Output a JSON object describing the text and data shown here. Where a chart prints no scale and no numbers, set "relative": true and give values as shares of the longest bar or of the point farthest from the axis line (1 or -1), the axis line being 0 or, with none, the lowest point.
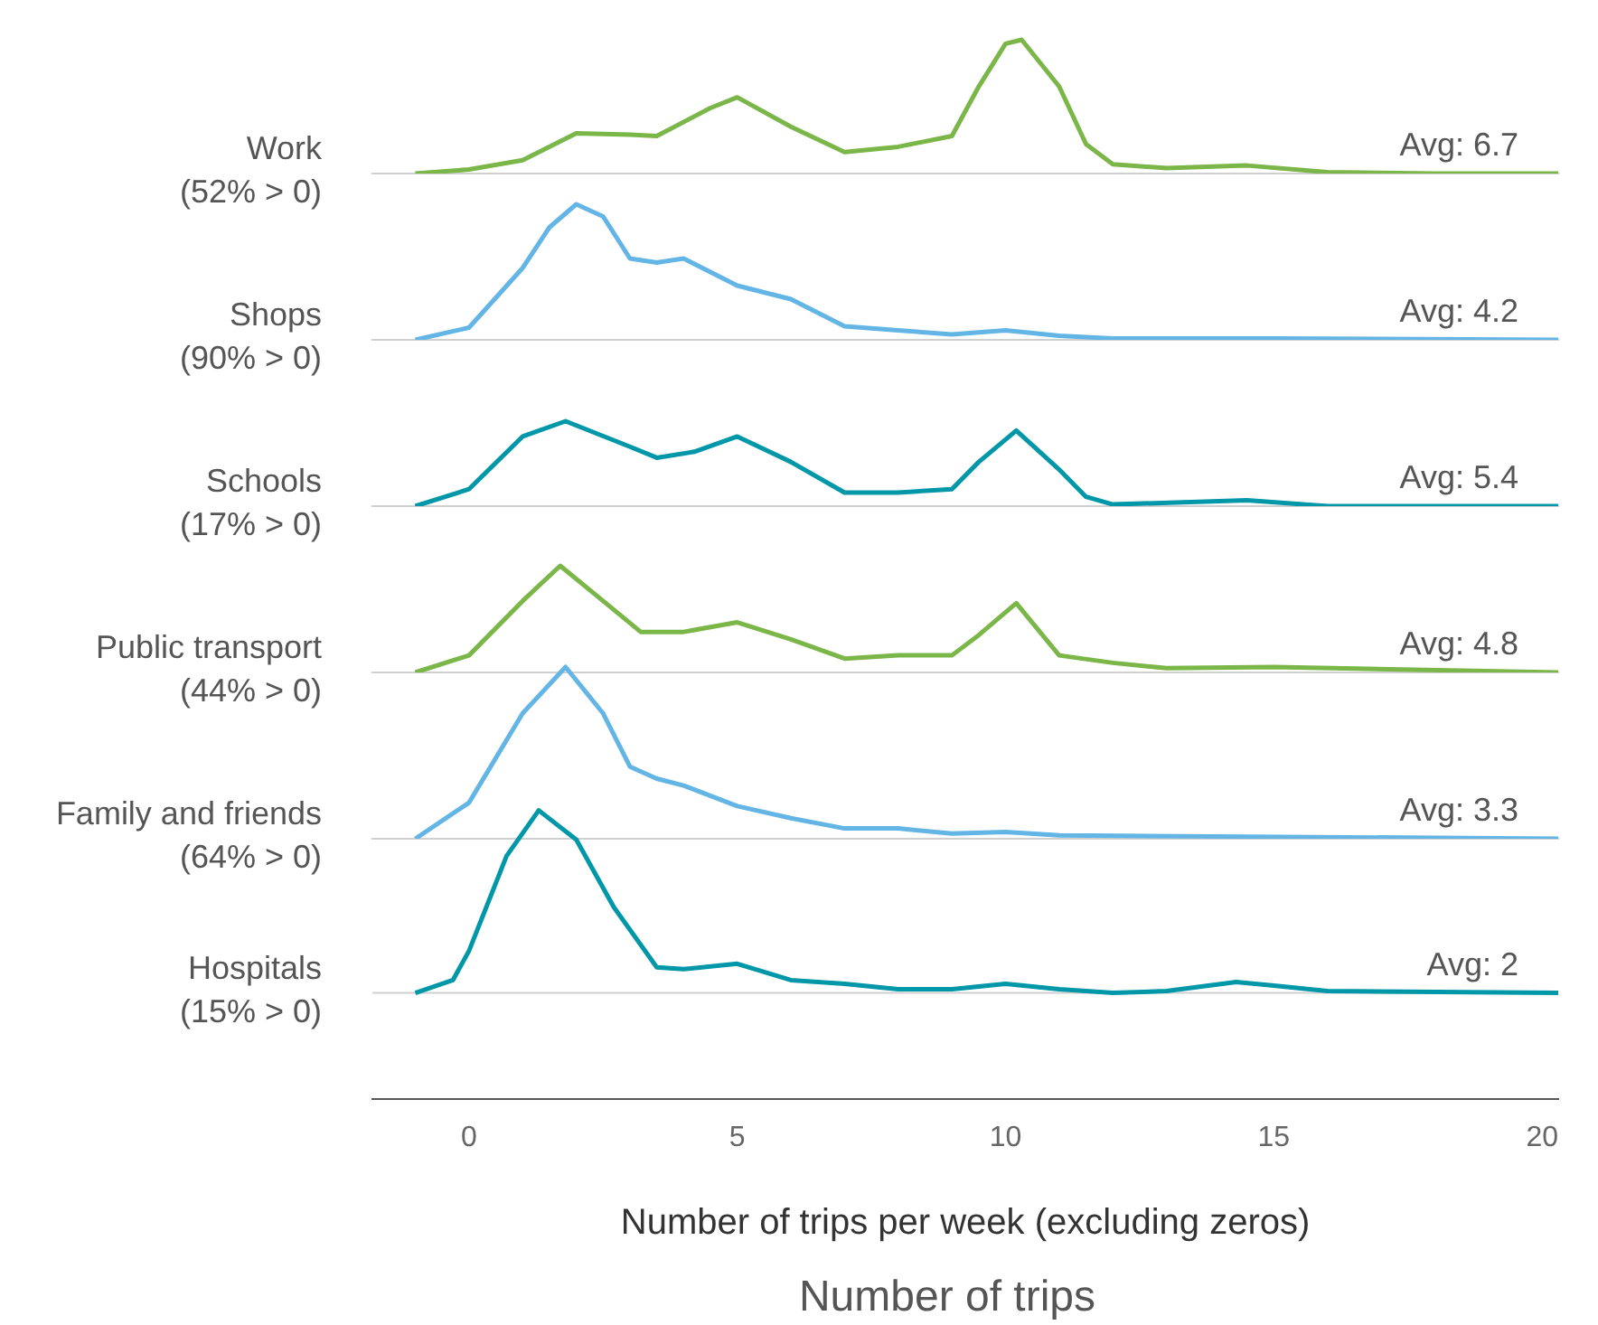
{
  "chart_data": [
    {
      "type": "line",
      "relative": true,
      "marker": "none",
      "line_style": "solid",
      "ylabel": "Work (52% > 0)",
      "xlim": [
        -1.8,
        20.3
      ],
      "tick_labels": false,
      "annotations": [
        "Avg: 6.7"
      ],
      "x": [
        -1,
        0,
        1,
        2,
        3,
        3.5,
        4.5,
        5,
        6,
        7,
        8,
        9,
        9.5,
        10,
        10.3,
        11,
        11.5,
        12,
        13,
        14.5,
        16,
        18,
        20.3
      ],
      "series": [
        {
          "color": "#7ab648",
          "values": [
            0,
            0.03,
            0.1,
            0.3,
            0.29,
            0.28,
            0.49,
            0.57,
            0.35,
            0.16,
            0.2,
            0.28,
            0.65,
            0.97,
            1,
            0.65,
            0.22,
            0.07,
            0.04,
            0.06,
            0.01,
            0,
            0
          ]
        }
      ]
    },
    {
      "type": "line",
      "relative": true,
      "marker": "none",
      "line_style": "solid",
      "ylabel": "Shops (90% > 0)",
      "xlim": [
        -1.8,
        20.3
      ],
      "tick_labels": false,
      "annotations": [
        "Avg: 4.2"
      ],
      "x": [
        -1,
        0,
        1,
        1.5,
        2,
        2.5,
        3,
        3.5,
        4,
        5,
        6,
        7,
        8,
        9,
        10,
        11,
        12,
        15,
        20.3
      ],
      "series": [
        {
          "color": "#62b5e5",
          "values": [
            0,
            0.09,
            0.53,
            0.83,
            1,
            0.91,
            0.6,
            0.57,
            0.6,
            0.4,
            0.3,
            0.1,
            0.07,
            0.04,
            0.07,
            0.03,
            0.01,
            0.01,
            0
          ]
        }
      ]
    },
    {
      "type": "line",
      "relative": true,
      "marker": "none",
      "line_style": "solid",
      "ylabel": "Schools (17% > 0)",
      "xlim": [
        -1.8,
        20.3
      ],
      "tick_labels": false,
      "annotations": [
        "Avg: 5.4"
      ],
      "x": [
        -1,
        0,
        1,
        1.8,
        3,
        3.5,
        4.2,
        5,
        6,
        7,
        8,
        9,
        9.5,
        10.2,
        11,
        11.5,
        12,
        14.5,
        16,
        20.3
      ],
      "series": [
        {
          "color": "#0097a9",
          "values": [
            0,
            0.2,
            0.82,
            1,
            0.7,
            0.57,
            0.64,
            0.82,
            0.52,
            0.16,
            0.16,
            0.2,
            0.52,
            0.89,
            0.43,
            0.11,
            0.02,
            0.07,
            0,
            0
          ]
        }
      ]
    },
    {
      "type": "line",
      "relative": true,
      "marker": "none",
      "line_style": "solid",
      "ylabel": "Public transport (44% > 0)",
      "xlim": [
        -1.8,
        20.3
      ],
      "tick_labels": false,
      "annotations": [
        "Avg: 4.8"
      ],
      "x": [
        -1,
        0,
        1,
        1.7,
        2.5,
        3.2,
        4,
        5,
        6,
        7,
        8,
        9,
        9.5,
        10.2,
        11,
        12,
        13,
        15,
        20.3
      ],
      "series": [
        {
          "color": "#7ab648",
          "values": [
            0,
            0.16,
            0.67,
            1,
            0.67,
            0.38,
            0.38,
            0.47,
            0.31,
            0.13,
            0.16,
            0.16,
            0.35,
            0.65,
            0.16,
            0.09,
            0.04,
            0.05,
            0
          ]
        }
      ]
    },
    {
      "type": "line",
      "relative": true,
      "marker": "none",
      "line_style": "solid",
      "ylabel": "Family and friends (64% > 0)",
      "xlim": [
        -1.8,
        20.3
      ],
      "tick_labels": false,
      "annotations": [
        "Avg: 3.3"
      ],
      "x": [
        -1,
        0,
        1,
        1.8,
        2.5,
        3,
        3.5,
        4,
        5,
        6,
        7,
        8,
        9,
        10,
        11,
        20.3
      ],
      "series": [
        {
          "color": "#62b5e5",
          "values": [
            0,
            0.21,
            0.73,
            1,
            0.73,
            0.42,
            0.35,
            0.31,
            0.19,
            0.12,
            0.06,
            0.06,
            0.03,
            0.04,
            0.02,
            0
          ]
        }
      ]
    },
    {
      "type": "line",
      "relative": true,
      "marker": "none",
      "line_style": "solid",
      "ylabel": "Hospitals (15% > 0)",
      "xlabel": "Number of trips per week (excluding zeros)",
      "xlim": [
        -1.8,
        20.3
      ],
      "xticks": [
        0,
        5,
        10,
        15,
        20
      ],
      "tick_labels": "x",
      "annotations": [
        "Avg: 2",
        "Number of trips"
      ],
      "x": [
        -1,
        -0.3,
        0,
        0.7,
        1.3,
        2,
        2.7,
        3.5,
        4,
        5,
        6,
        7,
        8,
        9,
        10,
        11,
        12,
        13,
        14.3,
        15,
        16,
        20.3
      ],
      "series": [
        {
          "color": "#0097a9",
          "values": [
            0,
            0.07,
            0.23,
            0.75,
            1,
            0.84,
            0.47,
            0.14,
            0.13,
            0.16,
            0.07,
            0.05,
            0.02,
            0.02,
            0.05,
            0.02,
            0,
            0.01,
            0.06,
            0.04,
            0.01,
            0
          ]
        }
      ]
    }
  ]
}
